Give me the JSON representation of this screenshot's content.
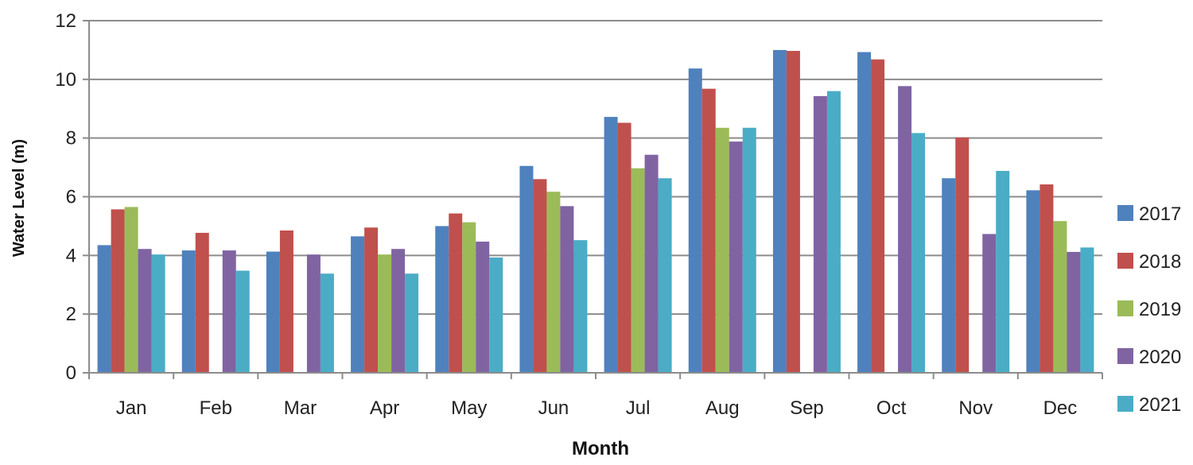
{
  "chart_data": {
    "type": "bar",
    "title": "",
    "xlabel": "Month",
    "ylabel": "Water Level (m)",
    "ylim": [
      0,
      12
    ],
    "yticks": [
      0,
      2,
      4,
      6,
      8,
      10,
      12
    ],
    "grid": true,
    "legend_position": "right",
    "categories": [
      "Jan",
      "Feb",
      "Mar",
      "Apr",
      "May",
      "Jun",
      "Jul",
      "Aug",
      "Sep",
      "Oct",
      "Nov",
      "Dec"
    ],
    "series": [
      {
        "name": "2017",
        "color": "#4f81bd",
        "values": [
          4.35,
          4.17,
          4.13,
          4.65,
          5.0,
          7.05,
          8.72,
          10.37,
          11.0,
          10.93,
          6.63,
          6.22
        ]
      },
      {
        "name": "2018",
        "color": "#c0504d",
        "values": [
          5.57,
          4.77,
          4.85,
          4.95,
          5.43,
          6.6,
          8.52,
          9.68,
          10.97,
          10.68,
          8.02,
          6.42
        ]
      },
      {
        "name": "2019",
        "color": "#9bbb59",
        "values": [
          5.65,
          null,
          null,
          4.03,
          5.13,
          6.17,
          6.97,
          8.35,
          null,
          null,
          null,
          5.17
        ]
      },
      {
        "name": "2020",
        "color": "#8064a2",
        "values": [
          4.22,
          4.17,
          4.03,
          4.22,
          4.47,
          5.68,
          7.43,
          7.88,
          9.43,
          9.77,
          4.73,
          4.12
        ]
      },
      {
        "name": "2021",
        "color": "#4bacc6",
        "values": [
          4.03,
          3.48,
          3.38,
          3.38,
          3.93,
          4.52,
          6.63,
          8.35,
          9.6,
          8.17,
          6.88,
          4.27
        ]
      }
    ]
  }
}
